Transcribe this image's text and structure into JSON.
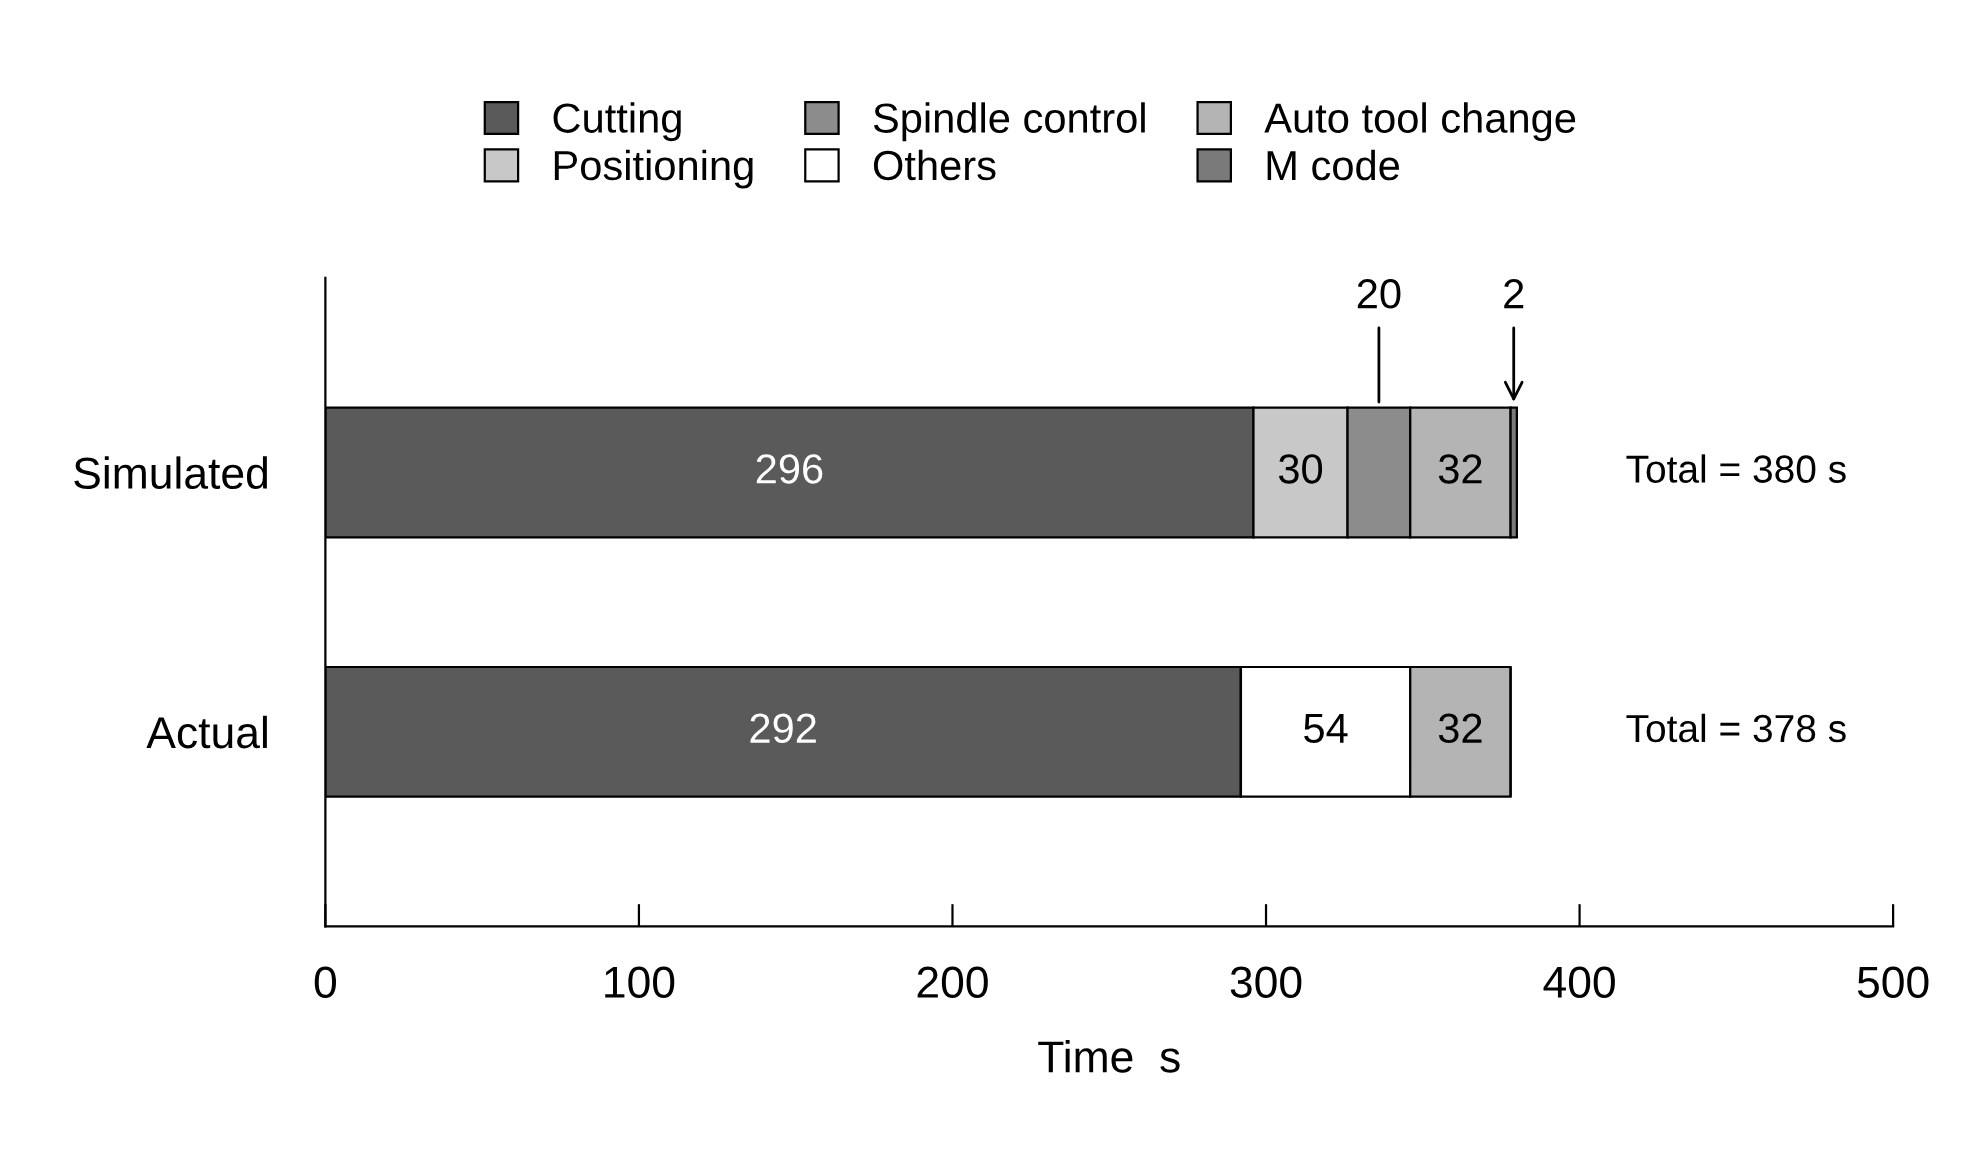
{
  "chart_data": {
    "type": "bar",
    "orientation": "horizontal",
    "stacked": true,
    "xlabel": "Time  s",
    "categories": [
      "Simulated",
      "Actual"
    ],
    "series": [
      {
        "name": "Cutting",
        "color": "#5a5a5a",
        "values": [
          296,
          292
        ],
        "value_labels": [
          "296",
          "292"
        ]
      },
      {
        "name": "Positioning",
        "color": "#c8c8c8",
        "values": [
          30,
          null
        ],
        "value_labels": [
          "30",
          null
        ]
      },
      {
        "name": "Spindle control",
        "color": "#8c8c8c",
        "values": [
          20,
          null
        ],
        "value_labels": [
          "20",
          null
        ]
      },
      {
        "name": "Others",
        "color": "#ffffff",
        "values": [
          null,
          54
        ],
        "value_labels": [
          null,
          "54"
        ]
      },
      {
        "name": "Auto tool change",
        "color": "#b4b4b4",
        "values": [
          32,
          32
        ],
        "value_labels": [
          "32",
          "32"
        ]
      },
      {
        "name": "M code",
        "color": "#7a7a7a",
        "values": [
          2,
          null
        ],
        "value_labels": [
          "2",
          null
        ]
      }
    ],
    "totals": [
      "Total = 380 s",
      "Total = 378 s"
    ],
    "xlim": [
      0,
      500
    ],
    "xticks": [
      0,
      100,
      200,
      300,
      400,
      500
    ],
    "grid": false,
    "legend": "top"
  }
}
